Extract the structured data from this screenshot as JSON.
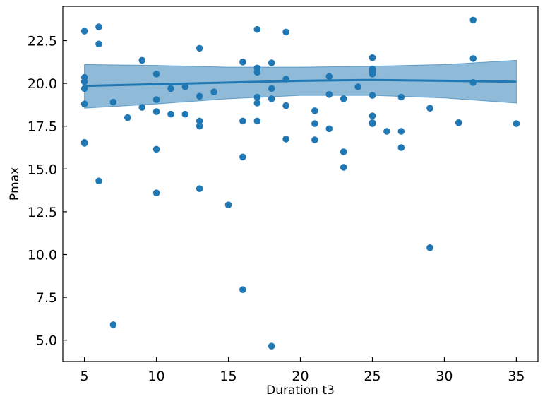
{
  "chart_data": {
    "type": "scatter",
    "title": "",
    "xlabel": "Duration t3",
    "ylabel": "Pmax",
    "xlim": [
      3.5,
      36.5
    ],
    "ylim": [
      3.75,
      24.5
    ],
    "grid": false,
    "xticks": [
      5,
      10,
      15,
      20,
      25,
      30,
      35
    ],
    "xtick_labels": [
      "5",
      "10",
      "15",
      "20",
      "25",
      "30",
      "35"
    ],
    "yticks": [
      5.0,
      7.5,
      10.0,
      12.5,
      15.0,
      17.5,
      20.0,
      22.5
    ],
    "ytick_labels": [
      "5.0",
      "7.5",
      "10.0",
      "12.5",
      "15.0",
      "17.5",
      "20.0",
      "22.5"
    ],
    "colors": {
      "points": "#1f77b4",
      "trend_line": "#1f77b4",
      "band": "#1f77b4"
    },
    "points": {
      "x": [
        5,
        5,
        5,
        5,
        5,
        5,
        5,
        6,
        6,
        6,
        7,
        7,
        8,
        9,
        9,
        10,
        10,
        10,
        10,
        10,
        11,
        11,
        12,
        12,
        13,
        13,
        13,
        13,
        13,
        14,
        15,
        16,
        16,
        16,
        16,
        17,
        17,
        17,
        17,
        17,
        17,
        18,
        18,
        18,
        18,
        19,
        19,
        19,
        19,
        21,
        21,
        21,
        22,
        22,
        22,
        23,
        23,
        23,
        24,
        25,
        25,
        25,
        25,
        25,
        25,
        25,
        25,
        26,
        27,
        27,
        27,
        29,
        29,
        31,
        32,
        32,
        32,
        35
      ],
      "y": [
        23.05,
        20.35,
        20.1,
        19.7,
        18.8,
        16.55,
        16.5,
        23.3,
        22.3,
        14.3,
        18.9,
        5.9,
        18.0,
        21.35,
        18.6,
        20.55,
        19.05,
        18.35,
        16.15,
        13.6,
        19.7,
        18.2,
        19.8,
        18.2,
        22.05,
        19.25,
        17.8,
        17.5,
        13.85,
        19.5,
        12.9,
        21.25,
        17.8,
        15.7,
        7.95,
        23.15,
        20.9,
        20.65,
        19.2,
        18.85,
        17.8,
        21.2,
        19.7,
        19.1,
        4.65,
        23.0,
        20.25,
        18.7,
        16.75,
        18.4,
        17.65,
        16.7,
        20.4,
        19.35,
        17.35,
        19.1,
        16.0,
        15.1,
        19.8,
        21.5,
        20.85,
        20.7,
        20.55,
        19.3,
        18.1,
        17.7,
        17.65,
        17.2,
        19.2,
        17.2,
        16.25,
        18.55,
        10.4,
        17.7,
        23.7,
        21.45,
        20.05,
        17.65
      ]
    },
    "trend_line": {
      "x": [
        5,
        10,
        15,
        20,
        25,
        30,
        35
      ],
      "y": [
        19.85,
        19.95,
        20.05,
        20.15,
        20.2,
        20.15,
        20.1
      ]
    },
    "confidence_band": {
      "x": [
        5,
        10,
        15,
        20,
        25,
        30,
        35
      ],
      "upper": [
        21.1,
        21.05,
        20.95,
        20.95,
        21.0,
        21.1,
        21.35
      ],
      "lower": [
        18.55,
        18.8,
        19.1,
        19.3,
        19.3,
        19.15,
        18.85
      ]
    }
  }
}
